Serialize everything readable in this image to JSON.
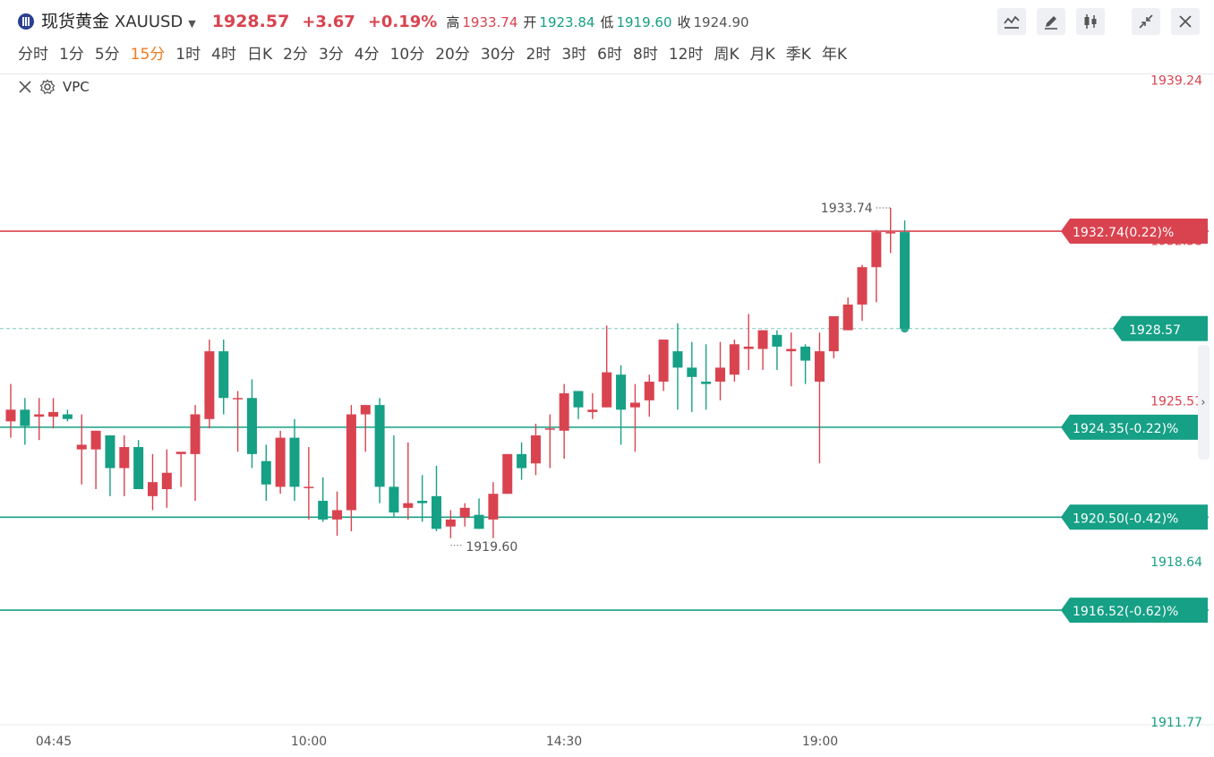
{
  "header": {
    "name": "现货黄金",
    "code": "XAUUSD",
    "price": "1928.57",
    "change": "+3.67",
    "change_pct": "+0.19%",
    "high_label": "高",
    "high": "1933.74",
    "open_label": "开",
    "open": "1923.84",
    "low_label": "低",
    "low": "1919.60",
    "close_label": "收",
    "close": "1924.90"
  },
  "toolbar": {
    "icons": [
      "line-tool-icon",
      "pen-icon",
      "candle-style-icon",
      "collapse-icon",
      "close-icon"
    ]
  },
  "periods": [
    {
      "label": "分时"
    },
    {
      "label": "1分"
    },
    {
      "label": "5分"
    },
    {
      "label": "15分",
      "active": true
    },
    {
      "label": "1时"
    },
    {
      "label": "4时"
    },
    {
      "label": "日K"
    },
    {
      "label": "2分"
    },
    {
      "label": "3分"
    },
    {
      "label": "4分"
    },
    {
      "label": "10分"
    },
    {
      "label": "20分"
    },
    {
      "label": "30分"
    },
    {
      "label": "2时"
    },
    {
      "label": "3时"
    },
    {
      "label": "6时"
    },
    {
      "label": "8时"
    },
    {
      "label": "12时"
    },
    {
      "label": "周K"
    },
    {
      "label": "月K"
    },
    {
      "label": "季K"
    },
    {
      "label": "年K"
    }
  ],
  "indicator": {
    "name": "VPC"
  },
  "colors": {
    "up": "#d9434f",
    "down": "#16a085",
    "accent": "#f07b1e"
  },
  "chart_data": {
    "type": "candlestick",
    "ylim": [
      1910.8,
      1940.0
    ],
    "y_ticks": [
      {
        "value": 1939.24,
        "label": "1939.24",
        "color": "#d9434f"
      },
      {
        "value": 1932.38,
        "label": "1932.38",
        "color": "#d9434f"
      },
      {
        "value": 1925.51,
        "label": "1925.51",
        "color": "#d9434f"
      },
      {
        "value": 1918.64,
        "label": "1918.64",
        "color": "#16a085"
      },
      {
        "value": 1911.77,
        "label": "1911.77",
        "color": "#16a085"
      }
    ],
    "x_ticks": [
      "04:45",
      "10:00",
      "14:30",
      "19:00"
    ],
    "candles": [
      {
        "o": 1924.6,
        "h": 1926.2,
        "l": 1923.9,
        "c": 1925.1
      },
      {
        "o": 1925.1,
        "h": 1925.6,
        "l": 1923.6,
        "c": 1924.4
      },
      {
        "o": 1924.8,
        "h": 1925.6,
        "l": 1923.8,
        "c": 1924.9
      },
      {
        "o": 1924.8,
        "h": 1925.6,
        "l": 1924.3,
        "c": 1925.0
      },
      {
        "o": 1924.9,
        "h": 1925.1,
        "l": 1924.6,
        "c": 1924.7
      },
      {
        "o": 1923.4,
        "h": 1924.9,
        "l": 1921.9,
        "c": 1923.6
      },
      {
        "o": 1923.4,
        "h": 1924.2,
        "l": 1921.7,
        "c": 1924.2
      },
      {
        "o": 1924.0,
        "h": 1924.0,
        "l": 1921.4,
        "c": 1922.6
      },
      {
        "o": 1922.6,
        "h": 1924.0,
        "l": 1921.4,
        "c": 1923.5
      },
      {
        "o": 1923.5,
        "h": 1923.8,
        "l": 1921.7,
        "c": 1921.7
      },
      {
        "o": 1921.4,
        "h": 1923.2,
        "l": 1920.8,
        "c": 1922.0
      },
      {
        "o": 1921.7,
        "h": 1923.4,
        "l": 1920.9,
        "c": 1922.4
      },
      {
        "o": 1923.2,
        "h": 1923.2,
        "l": 1921.8,
        "c": 1923.3
      },
      {
        "o": 1923.2,
        "h": 1925.3,
        "l": 1921.2,
        "c": 1924.9
      },
      {
        "o": 1924.7,
        "h": 1928.1,
        "l": 1924.3,
        "c": 1927.6
      },
      {
        "o": 1927.6,
        "h": 1928.1,
        "l": 1924.9,
        "c": 1925.6
      },
      {
        "o": 1925.6,
        "h": 1925.9,
        "l": 1923.3,
        "c": 1925.6
      },
      {
        "o": 1925.6,
        "h": 1926.4,
        "l": 1922.6,
        "c": 1923.2
      },
      {
        "o": 1922.9,
        "h": 1923.6,
        "l": 1921.2,
        "c": 1921.9
      },
      {
        "o": 1921.8,
        "h": 1924.2,
        "l": 1921.5,
        "c": 1923.9
      },
      {
        "o": 1923.9,
        "h": 1924.7,
        "l": 1921.2,
        "c": 1921.8
      },
      {
        "o": 1921.8,
        "h": 1923.5,
        "l": 1920.4,
        "c": 1921.8
      },
      {
        "o": 1921.2,
        "h": 1922.2,
        "l": 1920.3,
        "c": 1920.4
      },
      {
        "o": 1920.4,
        "h": 1921.6,
        "l": 1919.7,
        "c": 1920.8
      },
      {
        "o": 1920.8,
        "h": 1925.3,
        "l": 1919.9,
        "c": 1924.9
      },
      {
        "o": 1924.9,
        "h": 1925.3,
        "l": 1923.3,
        "c": 1925.3
      },
      {
        "o": 1925.3,
        "h": 1925.6,
        "l": 1921.1,
        "c": 1921.8
      },
      {
        "o": 1921.8,
        "h": 1924.0,
        "l": 1920.5,
        "c": 1920.7
      },
      {
        "o": 1920.9,
        "h": 1923.7,
        "l": 1920.4,
        "c": 1921.1
      },
      {
        "o": 1921.2,
        "h": 1922.3,
        "l": 1920.3,
        "c": 1921.1
      },
      {
        "o": 1921.4,
        "h": 1922.7,
        "l": 1919.9,
        "c": 1920.0
      },
      {
        "o": 1920.1,
        "h": 1920.8,
        "l": 1919.6,
        "c": 1920.4
      },
      {
        "o": 1920.5,
        "h": 1921.1,
        "l": 1920.1,
        "c": 1920.9
      },
      {
        "o": 1920.6,
        "h": 1921.3,
        "l": 1920.0,
        "c": 1920.0
      },
      {
        "o": 1920.4,
        "h": 1922.0,
        "l": 1919.6,
        "c": 1921.5
      },
      {
        "o": 1921.5,
        "h": 1923.2,
        "l": 1921.5,
        "c": 1923.2
      },
      {
        "o": 1923.2,
        "h": 1923.7,
        "l": 1922.1,
        "c": 1922.6
      },
      {
        "o": 1922.8,
        "h": 1924.5,
        "l": 1922.3,
        "c": 1924.0
      },
      {
        "o": 1924.3,
        "h": 1924.9,
        "l": 1922.6,
        "c": 1924.3
      },
      {
        "o": 1924.2,
        "h": 1926.2,
        "l": 1923.0,
        "c": 1925.8
      },
      {
        "o": 1925.9,
        "h": 1925.9,
        "l": 1924.7,
        "c": 1925.2
      },
      {
        "o": 1925.0,
        "h": 1925.8,
        "l": 1924.7,
        "c": 1925.1
      },
      {
        "o": 1925.2,
        "h": 1928.7,
        "l": 1925.2,
        "c": 1926.7
      },
      {
        "o": 1926.6,
        "h": 1927.0,
        "l": 1923.6,
        "c": 1925.1
      },
      {
        "o": 1925.2,
        "h": 1926.2,
        "l": 1923.3,
        "c": 1925.4
      },
      {
        "o": 1925.5,
        "h": 1926.6,
        "l": 1924.8,
        "c": 1926.3
      },
      {
        "o": 1926.3,
        "h": 1928.1,
        "l": 1925.9,
        "c": 1928.1
      },
      {
        "o": 1927.6,
        "h": 1928.8,
        "l": 1925.1,
        "c": 1926.9
      },
      {
        "o": 1926.9,
        "h": 1928.0,
        "l": 1925.0,
        "c": 1926.5
      },
      {
        "o": 1926.3,
        "h": 1927.9,
        "l": 1925.1,
        "c": 1926.2
      },
      {
        "o": 1926.3,
        "h": 1928.0,
        "l": 1925.5,
        "c": 1926.9
      },
      {
        "o": 1926.6,
        "h": 1928.1,
        "l": 1926.3,
        "c": 1927.9
      },
      {
        "o": 1927.7,
        "h": 1929.2,
        "l": 1926.8,
        "c": 1927.8
      },
      {
        "o": 1927.7,
        "h": 1928.5,
        "l": 1926.8,
        "c": 1928.5
      },
      {
        "o": 1928.3,
        "h": 1928.5,
        "l": 1926.8,
        "c": 1927.8
      },
      {
        "o": 1927.6,
        "h": 1928.4,
        "l": 1926.1,
        "c": 1927.7
      },
      {
        "o": 1927.8,
        "h": 1927.9,
        "l": 1926.2,
        "c": 1927.2
      },
      {
        "o": 1926.3,
        "h": 1928.4,
        "l": 1922.8,
        "c": 1927.6
      },
      {
        "o": 1927.6,
        "h": 1929.1,
        "l": 1927.3,
        "c": 1929.1
      },
      {
        "o": 1928.5,
        "h": 1929.9,
        "l": 1928.5,
        "c": 1929.6
      },
      {
        "o": 1929.6,
        "h": 1931.3,
        "l": 1928.9,
        "c": 1931.2
      },
      {
        "o": 1931.2,
        "h": 1932.8,
        "l": 1929.7,
        "c": 1932.7
      },
      {
        "o": 1932.7,
        "h": 1933.74,
        "l": 1931.8,
        "c": 1932.7
      },
      {
        "o": 1932.7,
        "h": 1933.2,
        "l": 1928.7,
        "c": 1928.57
      }
    ],
    "annotations": [
      {
        "label": "1933.74",
        "value": 1933.74,
        "type": "high"
      },
      {
        "label": "1919.60",
        "value": 1919.6,
        "type": "low"
      }
    ],
    "levels": [
      {
        "value": 1932.74,
        "label": "1932.74(0.22)%",
        "color": "#d9434f"
      },
      {
        "value": 1924.35,
        "label": "1924.35(-0.22)%",
        "color": "#16a085"
      },
      {
        "value": 1920.5,
        "label": "1920.50(-0.42)%",
        "color": "#16a085"
      },
      {
        "value": 1916.52,
        "label": "1916.52(-0.62)%",
        "color": "#16a085"
      }
    ],
    "last_price": {
      "value": 1928.57,
      "label": "1928.57"
    }
  }
}
